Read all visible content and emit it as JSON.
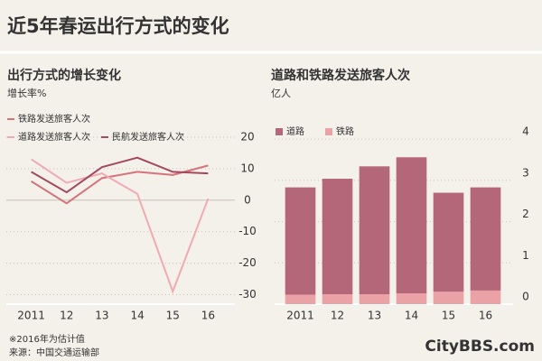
{
  "title": "近5年春运出行方式的变化",
  "chart_data": [
    {
      "type": "line",
      "title": "出行方式的增长变化",
      "y_label": "增长率%",
      "categories": [
        "2011",
        "12",
        "13",
        "14",
        "15",
        "16"
      ],
      "series": [
        {
          "name": "铁路发送旅客人次",
          "color": "#d4737a",
          "values": [
            6,
            -1,
            7,
            9,
            8,
            11
          ]
        },
        {
          "name": "道路发送旅客人次",
          "color": "#f2a9b2",
          "values": [
            13,
            5.5,
            8.5,
            2,
            -29,
            0.5
          ]
        },
        {
          "name": "民航发送旅客人次",
          "color": "#a3485f",
          "values": [
            9,
            2.5,
            10.5,
            13.5,
            9,
            8.5
          ]
        }
      ],
      "ylim": [
        -33,
        22
      ],
      "yticks": [
        20,
        10,
        0,
        -10,
        -20,
        -30
      ],
      "grid": true
    },
    {
      "type": "stacked-bar",
      "title": "道路和铁路发送旅客人次",
      "y_label": "亿人",
      "categories": [
        "2011",
        "12",
        "13",
        "14",
        "15",
        "16"
      ],
      "series": [
        {
          "name": "道路",
          "color": "#b5677a",
          "values": [
            2.6,
            2.8,
            3.1,
            3.3,
            2.4,
            2.5
          ]
        },
        {
          "name": "铁路",
          "color": "#eba2a6",
          "values": [
            0.23,
            0.24,
            0.24,
            0.26,
            0.3,
            0.33
          ]
        }
      ],
      "ylim": [
        0,
        4.2
      ],
      "yticks": [
        0,
        1,
        2,
        3,
        4
      ],
      "grid": true
    }
  ],
  "footnotes": [
    "※2016年为估计值",
    "来源：中国交通运输部"
  ],
  "watermark": "CityBBS.com"
}
